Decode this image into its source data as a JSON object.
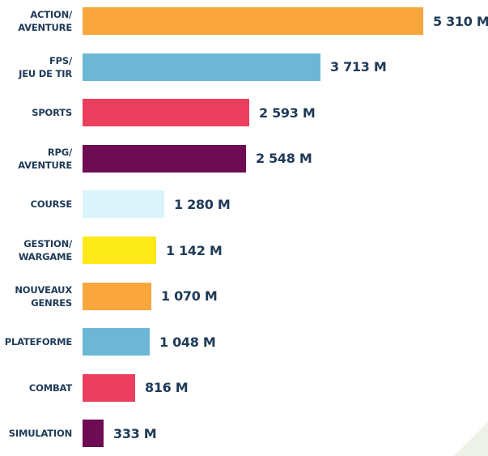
{
  "chart_data": {
    "type": "bar",
    "orientation": "horizontal",
    "categories": [
      "ACTION/\nAVENTURE",
      "FPS/\nJEU DE TIR",
      "SPORTS",
      "RPG/\nAVENTURE",
      "COURSE",
      "GESTION/\nWARGAME",
      "NOUVEAUX\nGENRES",
      "PLATEFORME",
      "COMBAT",
      "SIMULATION"
    ],
    "values": [
      5310,
      3713,
      2593,
      2548,
      1280,
      1142,
      1070,
      1048,
      816,
      333
    ],
    "value_labels": [
      "5 310 M",
      "3 713 M",
      "2 593 M",
      "2 548 M",
      "1 280 M",
      "1 142 M",
      "1 070 M",
      "1 048 M",
      "816 M",
      "333 M"
    ],
    "bar_colors": [
      "#f9a63d",
      "#6db7d6",
      "#ec3e5e",
      "#6e0c54",
      "#d9f4fb",
      "#fde818",
      "#f9a63d",
      "#6db7d6",
      "#ec3e5e",
      "#6e0c54"
    ],
    "xlim": [
      0,
      5310
    ],
    "axes_visible": false,
    "grid": false,
    "legend": "none",
    "label_color": "#1e3a57"
  }
}
